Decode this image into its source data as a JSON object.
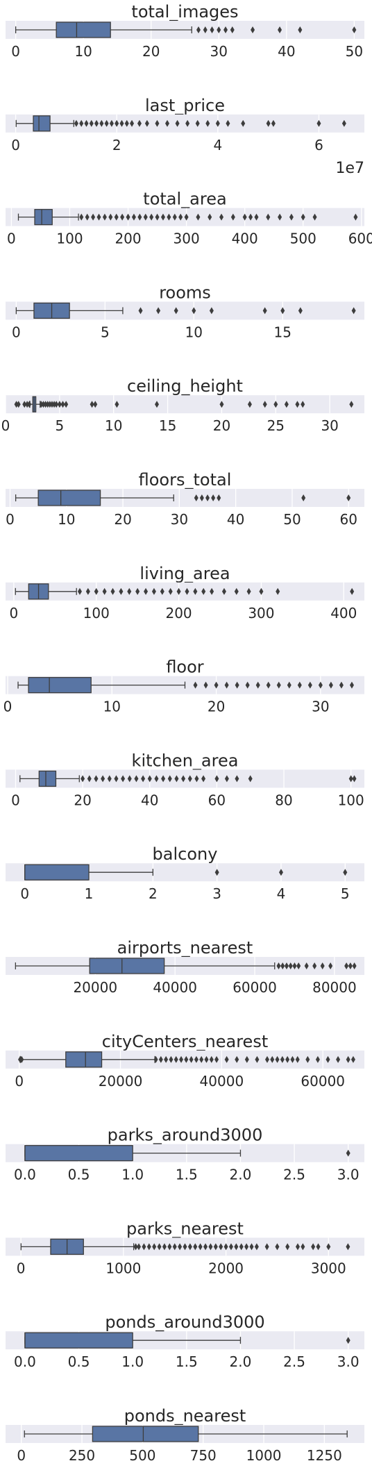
{
  "chart_data": [
    {
      "type": "boxplot",
      "title": "total_images",
      "xlim": [
        -1.5,
        51.5
      ],
      "ticks": [
        0,
        10,
        20,
        30,
        40,
        50
      ],
      "tick_labels": [
        "0",
        "10",
        "20",
        "30",
        "40",
        "50"
      ],
      "offset_text": "",
      "box": {
        "whisker_low": 0,
        "q1": 6,
        "median": 9,
        "q3": 14,
        "whisker_high": 26
      },
      "outliers": [
        27,
        28,
        29,
        30,
        31,
        32,
        35,
        39,
        42,
        50
      ]
    },
    {
      "type": "boxplot",
      "title": "last_price",
      "xlim": [
        -0.2,
        6.9
      ],
      "ticks": [
        0,
        2,
        4,
        6
      ],
      "tick_labels": [
        "0",
        "2",
        "4",
        "6"
      ],
      "offset_text": "1e7",
      "box": {
        "whisker_low": 0.01,
        "q1": 0.35,
        "median": 0.46,
        "q3": 0.68,
        "whisker_high": 1.15
      },
      "outliers": [
        1.2,
        1.3,
        1.4,
        1.5,
        1.6,
        1.7,
        1.8,
        1.9,
        2.0,
        2.1,
        2.2,
        2.3,
        2.45,
        2.6,
        2.8,
        3.0,
        3.2,
        3.4,
        3.6,
        3.8,
        4.0,
        4.2,
        4.5,
        5.0,
        5.1,
        6.0,
        6.5
      ]
    },
    {
      "type": "boxplot",
      "title": "total_area",
      "xlim": [
        -10,
        605
      ],
      "ticks": [
        0,
        100,
        200,
        300,
        400,
        500,
        600
      ],
      "tick_labels": [
        "0",
        "100",
        "200",
        "300",
        "400",
        "500",
        "600"
      ],
      "offset_text": "",
      "box": {
        "whisker_low": 12,
        "q1": 40,
        "median": 52,
        "q3": 70,
        "whisker_high": 115
      },
      "outliers": [
        120,
        130,
        140,
        150,
        160,
        170,
        180,
        190,
        200,
        210,
        220,
        230,
        240,
        250,
        260,
        270,
        280,
        290,
        300,
        320,
        340,
        360,
        380,
        400,
        410,
        420,
        440,
        460,
        480,
        500,
        520,
        590
      ]
    },
    {
      "type": "boxplot",
      "title": "rooms",
      "xlim": [
        -0.6,
        19.6
      ],
      "ticks": [
        0,
        5,
        10,
        15
      ],
      "tick_labels": [
        "0",
        "5",
        "10",
        "15"
      ],
      "offset_text": "",
      "box": {
        "whisker_low": 0,
        "q1": 1,
        "median": 2,
        "q3": 3,
        "whisker_high": 6
      },
      "outliers": [
        7,
        8,
        9,
        10,
        11,
        14,
        15,
        16,
        19
      ]
    },
    {
      "type": "boxplot",
      "title": "ceiling_height",
      "xlim": [
        0,
        33.2
      ],
      "ticks": [
        0,
        5,
        10,
        15,
        20,
        25,
        30
      ],
      "tick_labels": [
        "0",
        "5",
        "10",
        "15",
        "20",
        "25",
        "30"
      ],
      "offset_text": "",
      "box": {
        "whisker_low": 2.25,
        "q1": 2.52,
        "median": 2.65,
        "q3": 2.8,
        "whisker_high": 3.2
      },
      "outliers": [
        1.0,
        1.2,
        1.75,
        2.0,
        2.2,
        3.3,
        3.5,
        3.7,
        3.9,
        4.1,
        4.3,
        4.5,
        4.7,
        5.0,
        5.3,
        5.6,
        8.0,
        8.3,
        10.3,
        14.0,
        20.0,
        22.6,
        24.0,
        25.0,
        26.0,
        27.0,
        27.5,
        32.0
      ]
    },
    {
      "type": "boxplot",
      "title": "floors_total",
      "xlim": [
        -0.8,
        62.8
      ],
      "ticks": [
        0,
        10,
        20,
        30,
        40,
        50,
        60
      ],
      "tick_labels": [
        "0",
        "10",
        "20",
        "30",
        "40",
        "50",
        "60"
      ],
      "offset_text": "",
      "box": {
        "whisker_low": 1,
        "q1": 5,
        "median": 9,
        "q3": 16,
        "whisker_high": 29
      },
      "outliers": [
        33,
        34,
        35,
        36,
        37,
        52,
        60
      ]
    },
    {
      "type": "boxplot",
      "title": "living_area",
      "xlim": [
        -10,
        425
      ],
      "ticks": [
        0,
        100,
        200,
        300,
        400
      ],
      "tick_labels": [
        "0",
        "100",
        "200",
        "300",
        "400"
      ],
      "offset_text": "",
      "box": {
        "whisker_low": 2,
        "q1": 18,
        "median": 30,
        "q3": 42,
        "whisker_high": 76
      },
      "outliers": [
        80,
        90,
        100,
        110,
        120,
        130,
        140,
        150,
        160,
        170,
        180,
        190,
        200,
        210,
        220,
        230,
        240,
        255,
        270,
        285,
        300,
        320,
        410
      ]
    },
    {
      "type": "boxplot",
      "title": "floor",
      "xlim": [
        -0.2,
        34.2
      ],
      "ticks": [
        0,
        10,
        20,
        30
      ],
      "tick_labels": [
        "0",
        "10",
        "20",
        "30"
      ],
      "offset_text": "",
      "box": {
        "whisker_low": 1,
        "q1": 2,
        "median": 4,
        "q3": 8,
        "whisker_high": 17
      },
      "outliers": [
        18,
        19,
        20,
        21,
        22,
        23,
        24,
        25,
        26,
        27,
        28,
        29,
        30,
        31,
        32,
        33
      ]
    },
    {
      "type": "boxplot",
      "title": "kitchen_area",
      "xlim": [
        -3,
        104
      ],
      "ticks": [
        0,
        20,
        40,
        60,
        80,
        100
      ],
      "tick_labels": [
        "0",
        "20",
        "40",
        "60",
        "80",
        "100"
      ],
      "offset_text": "",
      "box": {
        "whisker_low": 1.3,
        "q1": 7,
        "median": 9,
        "q3": 12,
        "whisker_high": 19
      },
      "outliers": [
        20,
        22,
        24,
        26,
        28,
        30,
        32,
        34,
        36,
        38,
        40,
        42,
        44,
        46,
        48,
        50,
        52,
        54,
        56,
        60,
        63,
        66,
        70,
        100,
        101
      ]
    },
    {
      "type": "boxplot",
      "title": "balcony",
      "xlim": [
        -0.3,
        5.3
      ],
      "ticks": [
        0,
        1,
        2,
        3,
        4,
        5
      ],
      "tick_labels": [
        "0",
        "1",
        "2",
        "3",
        "4",
        "5"
      ],
      "offset_text": "",
      "box": {
        "whisker_low": 0,
        "q1": 0,
        "median": 0,
        "q3": 1,
        "whisker_high": 2
      },
      "outliers": [
        3,
        4,
        5
      ]
    },
    {
      "type": "boxplot",
      "title": "airports_nearest",
      "xlim": [
        -2500,
        87500
      ],
      "ticks": [
        20000,
        40000,
        60000,
        80000
      ],
      "tick_labels": [
        "20000",
        "40000",
        "60000",
        "80000"
      ],
      "offset_text": "",
      "box": {
        "whisker_low": 0,
        "q1": 18600,
        "median": 26700,
        "q3": 37300,
        "whisker_high": 65000
      },
      "outliers": [
        66000,
        67000,
        68000,
        69000,
        70000,
        71000,
        73000,
        75000,
        77000,
        79000,
        83000,
        84000,
        85000
      ]
    },
    {
      "type": "boxplot",
      "title": "cityCenters_nearest",
      "xlim": [
        -2700,
        68200
      ],
      "ticks": [
        0,
        20000,
        40000,
        60000
      ],
      "tick_labels": [
        "0",
        "20000",
        "40000",
        "60000"
      ],
      "offset_text": "",
      "box": {
        "whisker_low": 200,
        "q1": 9200,
        "median": 13100,
        "q3": 16300,
        "whisker_high": 26800
      },
      "outliers": [
        180,
        300,
        500,
        27000,
        28000,
        29000,
        30000,
        31000,
        32000,
        33000,
        34000,
        35000,
        36000,
        37000,
        38000,
        39000,
        41000,
        43000,
        45000,
        47000,
        49000,
        50000,
        51000,
        52000,
        53000,
        54000,
        55000,
        57000,
        59000,
        61000,
        63000,
        65000,
        66000
      ]
    },
    {
      "type": "boxplot",
      "title": "parks_around3000",
      "xlim": [
        -0.18,
        3.15
      ],
      "ticks": [
        0,
        0.5,
        1,
        1.5,
        2,
        2.5,
        3
      ],
      "tick_labels": [
        "0.0",
        "0.5",
        "1.0",
        "1.5",
        "2.0",
        "2.5",
        "3.0"
      ],
      "offset_text": "",
      "box": {
        "whisker_low": 0,
        "q1": 0,
        "median": 0,
        "q3": 1,
        "whisker_high": 2
      },
      "outliers": [
        3
      ]
    },
    {
      "type": "boxplot",
      "title": "parks_nearest",
      "xlim": [
        -150,
        3350
      ],
      "ticks": [
        0,
        1000,
        2000,
        3000
      ],
      "tick_labels": [
        "0",
        "1000",
        "2000",
        "3000"
      ],
      "offset_text": "",
      "box": {
        "whisker_low": 1,
        "q1": 290,
        "median": 450,
        "q3": 610,
        "whisker_high": 1100
      },
      "outliers": [
        1120,
        1150,
        1200,
        1250,
        1300,
        1350,
        1400,
        1450,
        1500,
        1550,
        1600,
        1650,
        1700,
        1750,
        1800,
        1850,
        1900,
        1950,
        2000,
        2050,
        2100,
        2150,
        2200,
        2250,
        2300,
        2400,
        2500,
        2600,
        2700,
        2750,
        2850,
        2900,
        3000,
        3190
      ]
    },
    {
      "type": "boxplot",
      "title": "ponds_around3000",
      "xlim": [
        -0.18,
        3.15
      ],
      "ticks": [
        0,
        0.5,
        1,
        1.5,
        2,
        2.5,
        3
      ],
      "tick_labels": [
        "0.0",
        "0.5",
        "1.0",
        "1.5",
        "2.0",
        "2.5",
        "3.0"
      ],
      "offset_text": "",
      "box": {
        "whisker_low": 0,
        "q1": 0,
        "median": 0,
        "q3": 1,
        "whisker_high": 2
      },
      "outliers": [
        3
      ]
    },
    {
      "type": "boxplot",
      "title": "ponds_nearest",
      "xlim": [
        -65,
        1415
      ],
      "ticks": [
        0,
        250,
        500,
        750,
        1000,
        1250
      ],
      "tick_labels": [
        "0",
        "250",
        "500",
        "750",
        "1000",
        "1250"
      ],
      "offset_text": "",
      "box": {
        "whisker_low": 13,
        "q1": 294,
        "median": 503,
        "q3": 730,
        "whisker_high": 1344
      },
      "outliers": []
    }
  ],
  "colors": {
    "panel": "#eaeaf2",
    "box": "#5975a4",
    "line": "#3d3d3d",
    "grid": "#ffffff"
  }
}
